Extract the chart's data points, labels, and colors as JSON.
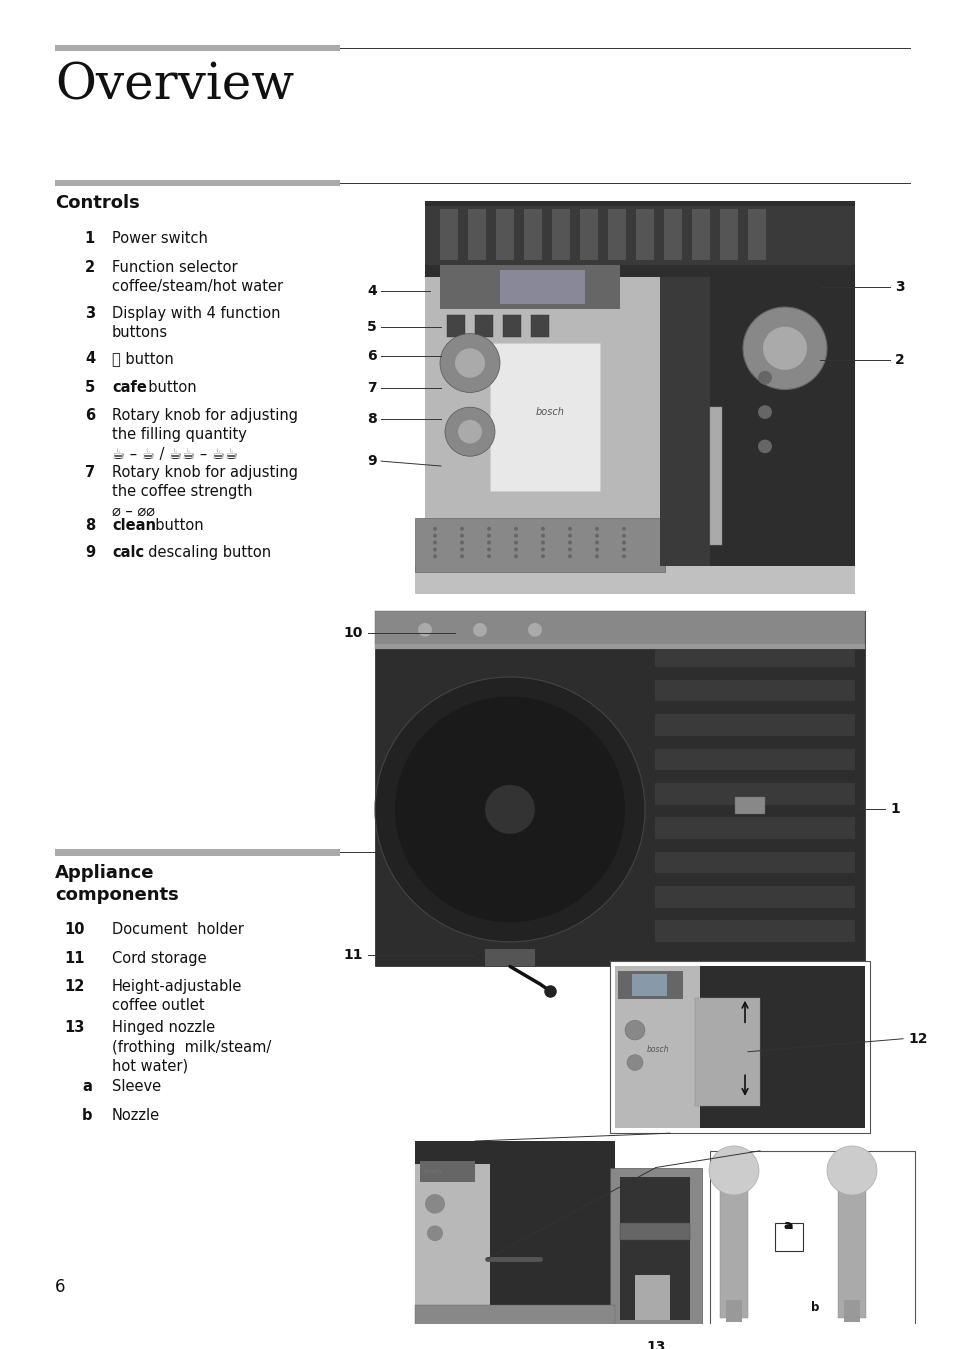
{
  "bg_color": "#ffffff",
  "page_width": 9.54,
  "page_height": 13.49,
  "title": "Overview",
  "section1": "Controls",
  "section2": "Appliance\ncomponents",
  "controls_items": [
    {
      "num": "1",
      "bold_part": null,
      "text": "Power switch"
    },
    {
      "num": "2",
      "bold_part": null,
      "text": "Function selector\ncoffee/steam/hot water"
    },
    {
      "num": "3",
      "bold_part": null,
      "text": "Display with 4 function\nbuttons"
    },
    {
      "num": "4",
      "bold_part": null,
      "text": "⏻ button"
    },
    {
      "num": "5",
      "bold_part": "cafe",
      "text": "  button"
    },
    {
      "num": "6",
      "bold_part": null,
      "text": "Rotary knob for adjusting\nthe filling quantity\n☕ – ☕ / ☕☕ – ☕☕"
    },
    {
      "num": "7",
      "bold_part": null,
      "text": "Rotary knob for adjusting\nthe coffee strength\n⌀ – ⌀⌀"
    },
    {
      "num": "8",
      "bold_part": "clean",
      "text": "  button"
    },
    {
      "num": "9",
      "bold_part": "calc",
      "text": "  descaling button"
    }
  ],
  "appliance_items": [
    {
      "num": "10",
      "indent": false,
      "text": "Document  holder"
    },
    {
      "num": "11",
      "indent": false,
      "text": "Cord storage"
    },
    {
      "num": "12",
      "indent": false,
      "text": "Height-adjustable\ncoffee outlet"
    },
    {
      "num": "13",
      "indent": false,
      "text": "Hinged nozzle\n(frothing  milk/steam/\nhot water)"
    },
    {
      "num": "a",
      "indent": true,
      "text": "Sleeve"
    },
    {
      "num": "b",
      "indent": true,
      "text": "Nozzle"
    }
  ],
  "page_number": "6",
  "bar_color": "#aaaaaa",
  "line_color": "#333333",
  "text_color": "#111111"
}
